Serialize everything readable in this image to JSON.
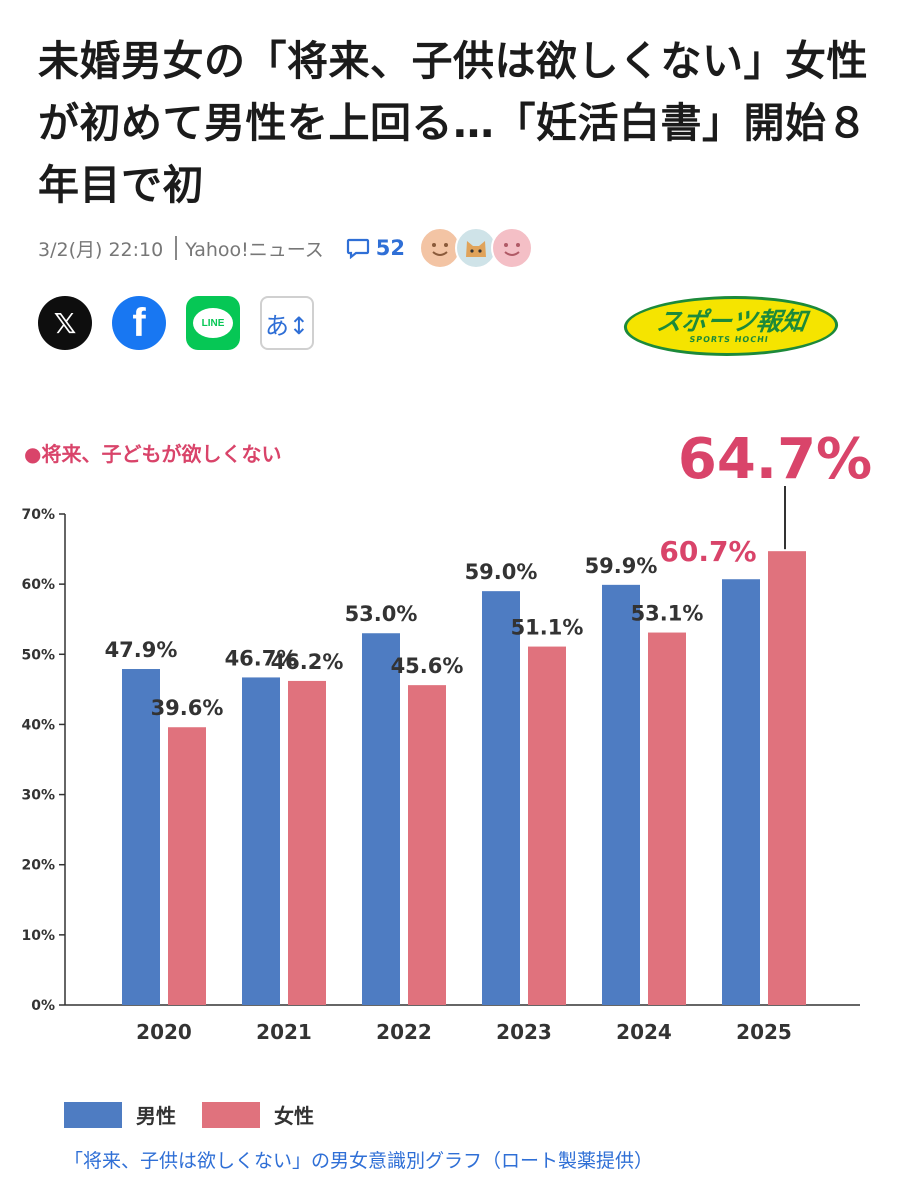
{
  "article": {
    "headline": "未婚男女の「将来、子供は欲しくない」女性が初めて男性を上回る…「妊活白書」開始８年目で初",
    "date": "3/2(月) 22:10",
    "source": "Yahoo!ニュース",
    "comment_count": "52"
  },
  "share": {
    "x": "𝕏",
    "facebook": "f",
    "line": "LINE",
    "font_size": "あ↕"
  },
  "logo": {
    "main": "スポーツ報知",
    "sub": "SPORTS HOCHI"
  },
  "chart_data": {
    "type": "bar",
    "title": "●将来、子どもが欲しくない",
    "categories": [
      "2020",
      "2021",
      "2022",
      "2023",
      "2024",
      "2025"
    ],
    "series": [
      {
        "name": "男性",
        "values": [
          47.9,
          46.7,
          53.0,
          59.0,
          59.9,
          60.7
        ],
        "labels": [
          "47.9%",
          "46.7%",
          "53.0%",
          "59.0%",
          "59.9%",
          "60.7%"
        ],
        "color": "#4e7cc2"
      },
      {
        "name": "女性",
        "values": [
          39.6,
          46.2,
          45.6,
          51.1,
          53.1,
          64.7
        ],
        "labels": [
          "39.6%",
          "46.2%",
          "45.6%",
          "51.1%",
          "53.1%",
          "64.7%"
        ],
        "color": "#e0727d"
      }
    ],
    "yticks": [
      "0%",
      "10%",
      "20%",
      "30%",
      "40%",
      "50%",
      "60%",
      "70%"
    ],
    "ylim": [
      0,
      70
    ],
    "highlight_color": "#d9446a",
    "legend_position": "bottom-left"
  },
  "caption": "「将来、子供は欲しくない」の男女意識別グラフ（ロート製薬提供）"
}
